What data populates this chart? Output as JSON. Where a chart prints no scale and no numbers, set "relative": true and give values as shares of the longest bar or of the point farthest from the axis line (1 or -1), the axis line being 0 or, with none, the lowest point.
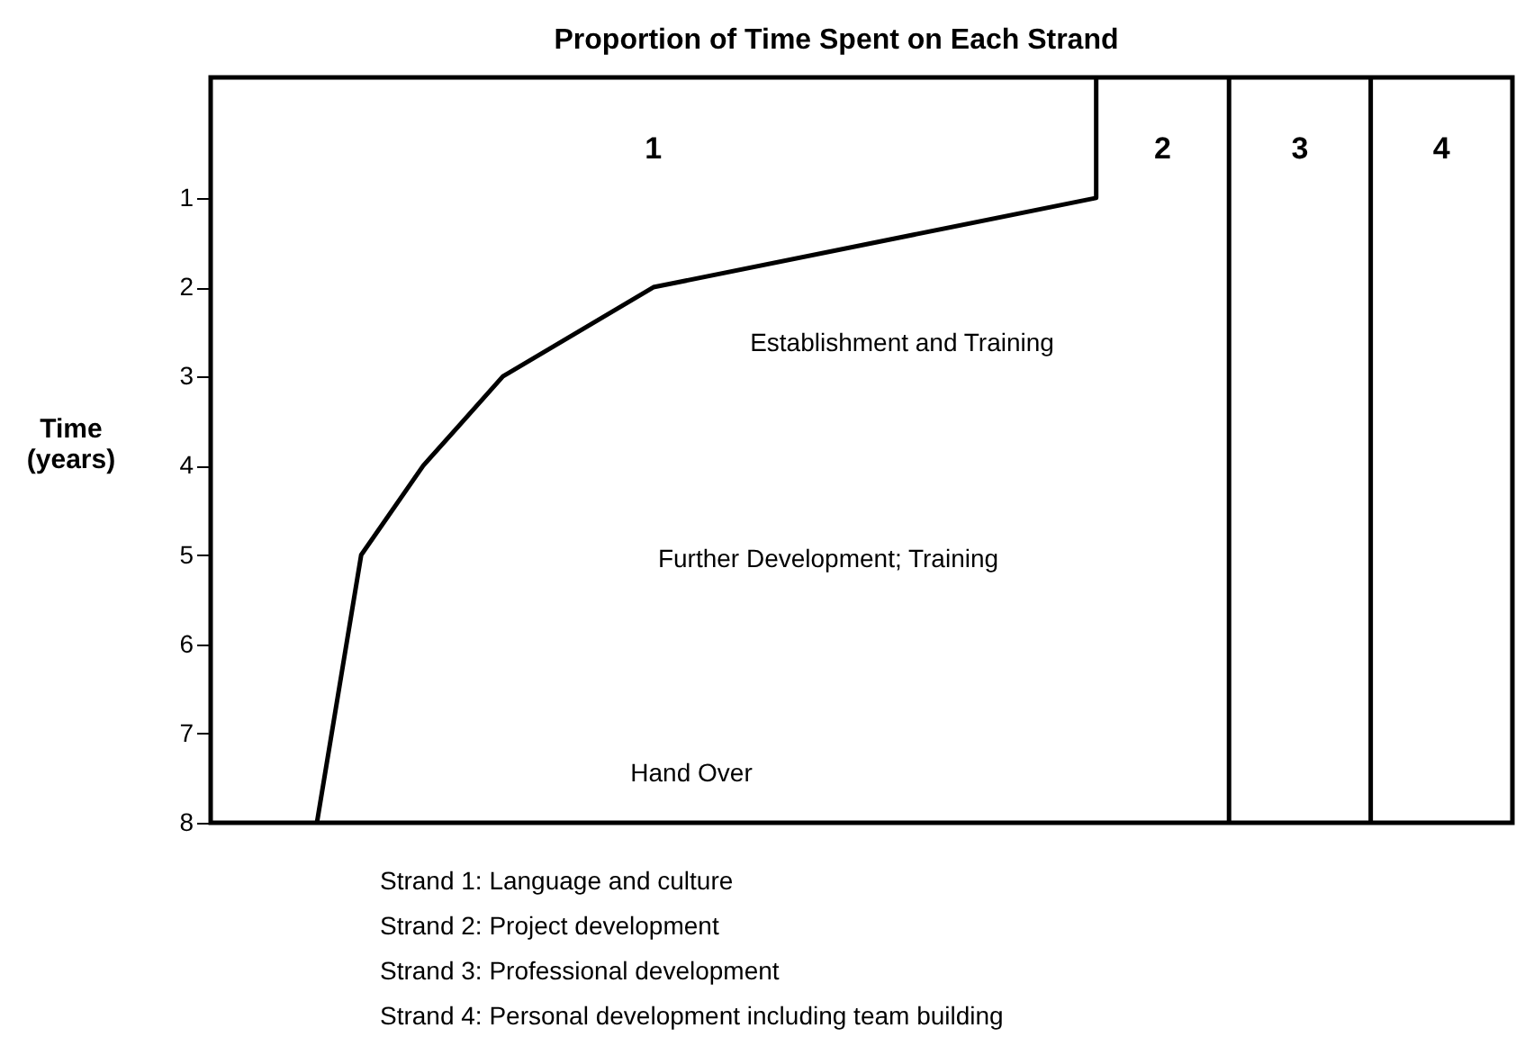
{
  "chart_data": {
    "type": "line",
    "title": "Proportion of Time Spent on Each Strand",
    "ylabel": "Time (years)",
    "orientation": "horizontal",
    "relative": true,
    "series": [
      {
        "color": "#000000",
        "x": [
          -0.35,
          1,
          2,
          3,
          4,
          5,
          8
        ],
        "values": [
          1.0,
          1.0,
          0.5,
          0.33,
          0.24,
          0.17,
          0.12
        ]
      }
    ],
    "ylim": [
      8,
      -0.35
    ],
    "yticks": [
      1,
      2,
      3,
      4,
      5,
      6,
      7,
      8
    ],
    "grid": false,
    "marker": "none",
    "line_style": "solid",
    "ref_lines": [
      {
        "axis": "x",
        "value": 1.15,
        "color": "#000000"
      },
      {
        "axis": "x",
        "value": 1.31,
        "color": "#000000"
      }
    ],
    "annotations": [
      "1",
      "2",
      "3",
      "4",
      "Establishment and Training",
      "Further Development; Training",
      "Hand Over",
      "Strand 1:  Language and culture",
      "Strand 2:  Project development",
      "Strand 3:  Professional development",
      "Strand 4:  Personal development including team building"
    ]
  }
}
